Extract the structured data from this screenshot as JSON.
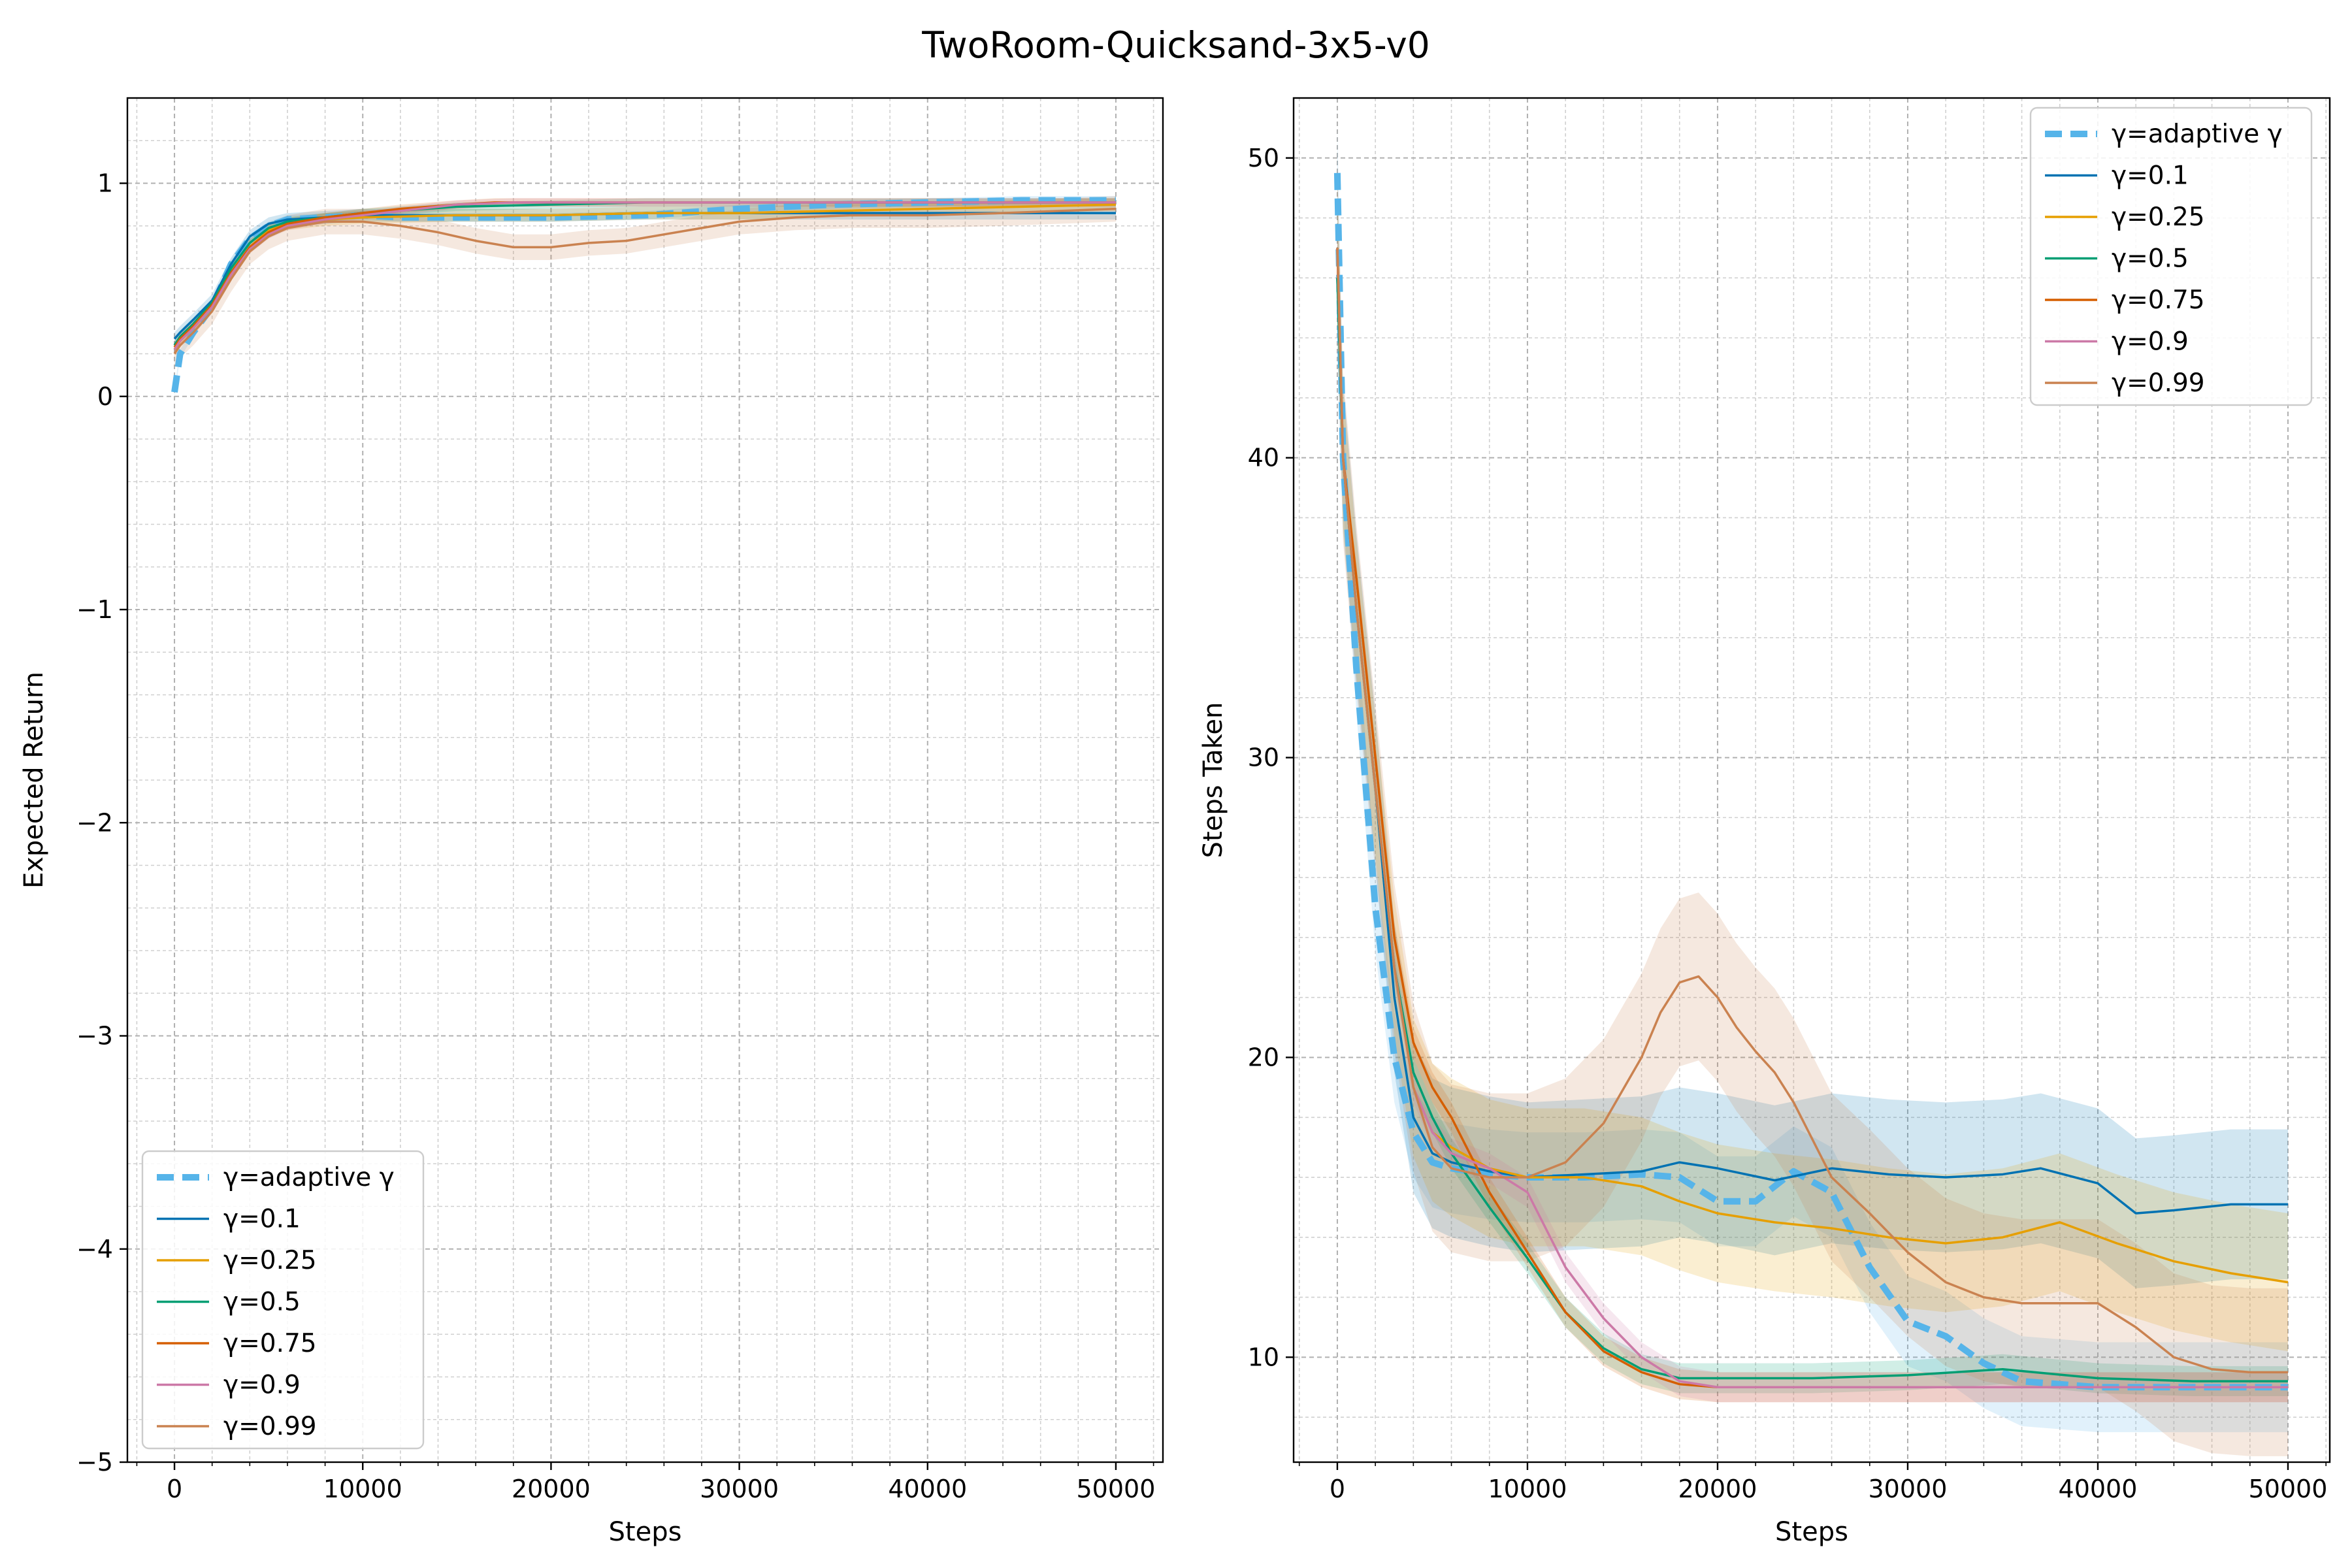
{
  "figure": {
    "title": "TwoRoom-Quicksand-3x5-v0"
  },
  "colors": {
    "adaptive": "#56B4E9",
    "g01": "#0072B2",
    "g025": "#E69F00",
    "g05": "#009E73",
    "g075": "#D55E00",
    "g09": "#CC79A7",
    "g099": "#CA8250"
  },
  "chart_data": [
    {
      "type": "line",
      "xlabel": "Steps",
      "ylabel": "Expected Return",
      "xlim": [
        -2500,
        52500
      ],
      "ylim": [
        -5,
        1.4
      ],
      "xticks": [
        0,
        10000,
        20000,
        30000,
        40000,
        50000
      ],
      "yticks": [
        -5,
        -4,
        -3,
        -2,
        -1,
        0,
        1
      ],
      "ytick_labels": [
        "−5",
        "−4",
        "−3",
        "−2",
        "−1",
        "0",
        "1"
      ],
      "grid": true,
      "legend_position": "lower-left",
      "series": [
        {
          "name": "γ=adaptive γ",
          "color_key": "adaptive",
          "dashed": true,
          "x": [
            0,
            300,
            1000,
            2000,
            3000,
            4000,
            5000,
            6000,
            8000,
            10000,
            12000,
            15000,
            20000,
            25000,
            30000,
            35000,
            40000,
            45000,
            50000
          ],
          "y": [
            0.02,
            0.2,
            0.3,
            0.42,
            0.62,
            0.74,
            0.8,
            0.83,
            0.84,
            0.85,
            0.84,
            0.84,
            0.84,
            0.85,
            0.88,
            0.9,
            0.91,
            0.92,
            0.92
          ],
          "band": 0.02
        },
        {
          "name": "γ=0.1",
          "color_key": "g01",
          "x": [
            0,
            300,
            1000,
            2000,
            3000,
            4000,
            5000,
            6000,
            8000,
            10000,
            15000,
            20000,
            25000,
            30000,
            35000,
            40000,
            45000,
            50000
          ],
          "y": [
            0.27,
            0.3,
            0.36,
            0.45,
            0.62,
            0.75,
            0.81,
            0.83,
            0.84,
            0.85,
            0.85,
            0.85,
            0.86,
            0.86,
            0.86,
            0.86,
            0.86,
            0.86
          ],
          "band": 0.03
        },
        {
          "name": "γ=0.25",
          "color_key": "g025",
          "x": [
            0,
            300,
            1000,
            2000,
            3000,
            4000,
            5000,
            6000,
            8000,
            10000,
            15000,
            20000,
            25000,
            30000,
            35000,
            40000,
            45000,
            50000
          ],
          "y": [
            0.22,
            0.26,
            0.32,
            0.42,
            0.58,
            0.7,
            0.78,
            0.81,
            0.83,
            0.84,
            0.85,
            0.85,
            0.86,
            0.86,
            0.87,
            0.88,
            0.89,
            0.9
          ],
          "band": 0.03
        },
        {
          "name": "γ=0.5",
          "color_key": "g05",
          "x": [
            0,
            300,
            1000,
            2000,
            3000,
            4000,
            5000,
            6000,
            8000,
            10000,
            15000,
            20000,
            25000,
            30000,
            35000,
            40000,
            45000,
            50000
          ],
          "y": [
            0.24,
            0.28,
            0.34,
            0.44,
            0.6,
            0.72,
            0.79,
            0.82,
            0.84,
            0.86,
            0.89,
            0.9,
            0.91,
            0.91,
            0.91,
            0.91,
            0.91,
            0.91
          ],
          "band": 0.02
        },
        {
          "name": "γ=0.75",
          "color_key": "g075",
          "x": [
            0,
            300,
            1000,
            2000,
            3000,
            4000,
            5000,
            6000,
            8000,
            10000,
            12000,
            15000,
            17000,
            20000,
            25000,
            30000,
            35000,
            40000,
            45000,
            50000
          ],
          "y": [
            0.23,
            0.27,
            0.33,
            0.43,
            0.58,
            0.7,
            0.77,
            0.81,
            0.84,
            0.86,
            0.88,
            0.9,
            0.91,
            0.91,
            0.91,
            0.91,
            0.91,
            0.91,
            0.91,
            0.91
          ],
          "band": 0.02
        },
        {
          "name": "γ=0.9",
          "color_key": "g09",
          "x": [
            0,
            300,
            1000,
            2000,
            3000,
            4000,
            5000,
            6000,
            8000,
            10000,
            12000,
            15000,
            18000,
            20000,
            25000,
            30000,
            35000,
            40000,
            45000,
            50000
          ],
          "y": [
            0.22,
            0.26,
            0.32,
            0.42,
            0.57,
            0.69,
            0.76,
            0.8,
            0.83,
            0.85,
            0.87,
            0.9,
            0.91,
            0.91,
            0.91,
            0.91,
            0.91,
            0.91,
            0.91,
            0.91
          ],
          "band": 0.02
        },
        {
          "name": "γ=0.99",
          "color_key": "g099",
          "x": [
            0,
            300,
            1000,
            2000,
            3000,
            4000,
            5000,
            6000,
            8000,
            10000,
            12000,
            14000,
            16000,
            18000,
            20000,
            22000,
            24000,
            26000,
            28000,
            30000,
            33000,
            36000,
            40000,
            44000,
            47000,
            50000
          ],
          "y": [
            0.2,
            0.24,
            0.3,
            0.4,
            0.55,
            0.68,
            0.75,
            0.79,
            0.82,
            0.82,
            0.8,
            0.77,
            0.73,
            0.7,
            0.7,
            0.72,
            0.73,
            0.76,
            0.79,
            0.82,
            0.84,
            0.85,
            0.85,
            0.86,
            0.87,
            0.88
          ],
          "band": 0.06
        }
      ]
    },
    {
      "type": "line",
      "xlabel": "Steps",
      "ylabel": "Steps Taken",
      "xlim": [
        -2300,
        52200
      ],
      "ylim": [
        6.5,
        52
      ],
      "xticks": [
        0,
        10000,
        20000,
        30000,
        40000,
        50000
      ],
      "yticks": [
        10,
        20,
        30,
        40,
        50
      ],
      "ytick_labels": [
        "10",
        "20",
        "30",
        "40",
        "50"
      ],
      "grid": true,
      "legend_position": "top-right",
      "series": [
        {
          "name": "γ=adaptive γ",
          "color_key": "adaptive",
          "dashed": true,
          "x": [
            0,
            300,
            1000,
            2000,
            3000,
            4000,
            5000,
            6000,
            8000,
            10000,
            13000,
            16000,
            18000,
            20000,
            22000,
            24000,
            26000,
            28000,
            30000,
            32000,
            34000,
            36000,
            40000,
            45000,
            50000
          ],
          "y": [
            49.5,
            40,
            33,
            25,
            20,
            17.5,
            16.5,
            16.3,
            16.1,
            16,
            16,
            16.1,
            16,
            15.2,
            15.2,
            16.2,
            15.5,
            13,
            11.2,
            10.7,
            9.8,
            9.2,
            9,
            9,
            9
          ],
          "band": 1.5
        },
        {
          "name": "γ=0.1",
          "color_key": "g01",
          "x": [
            0,
            300,
            1000,
            2000,
            3000,
            4000,
            5000,
            6000,
            8000,
            10000,
            13000,
            16000,
            18000,
            20000,
            23000,
            26000,
            29000,
            32000,
            35000,
            37000,
            40000,
            42000,
            44000,
            47000,
            50000
          ],
          "y": [
            46,
            40,
            35,
            29,
            22,
            18,
            16.8,
            16.5,
            16.2,
            16,
            16.1,
            16.2,
            16.5,
            16.3,
            15.9,
            16.3,
            16.1,
            16,
            16.1,
            16.3,
            15.8,
            14.8,
            14.9,
            15.1,
            15.1
          ],
          "band": 2.5
        },
        {
          "name": "γ=0.25",
          "color_key": "g025",
          "x": [
            0,
            300,
            1000,
            2000,
            3000,
            4000,
            5000,
            6000,
            8000,
            10000,
            13000,
            16000,
            18000,
            20000,
            23000,
            26000,
            29000,
            32000,
            35000,
            38000,
            41000,
            44000,
            47000,
            50000
          ],
          "y": [
            47,
            40,
            35,
            29,
            23,
            19,
            17.5,
            17,
            16.3,
            16,
            16,
            15.7,
            15.2,
            14.8,
            14.5,
            14.3,
            14,
            13.8,
            14,
            14.5,
            13.8,
            13.2,
            12.8,
            12.5
          ],
          "band": 2.3
        },
        {
          "name": "γ=0.5",
          "color_key": "g05",
          "x": [
            0,
            300,
            1000,
            2000,
            3000,
            4000,
            5000,
            6000,
            8000,
            10000,
            12000,
            14000,
            16000,
            18000,
            20000,
            25000,
            30000,
            35000,
            40000,
            45000,
            50000
          ],
          "y": [
            46,
            40,
            35,
            29,
            23,
            19.5,
            18,
            16.8,
            15,
            13.3,
            11.5,
            10.3,
            9.6,
            9.3,
            9.3,
            9.3,
            9.4,
            9.6,
            9.3,
            9.2,
            9.2
          ],
          "band": 0.5
        },
        {
          "name": "γ=0.75",
          "color_key": "g075",
          "x": [
            0,
            300,
            1000,
            2000,
            3000,
            4000,
            5000,
            6000,
            8000,
            10000,
            12000,
            14000,
            16000,
            18000,
            20000,
            25000,
            30000,
            35000,
            40000,
            45000,
            50000
          ],
          "y": [
            47,
            40,
            36,
            30,
            24,
            20.5,
            19,
            18,
            15.5,
            13.5,
            11.5,
            10.2,
            9.5,
            9.1,
            9,
            9,
            9,
            9,
            9,
            9,
            9
          ],
          "band": 0.5
        },
        {
          "name": "γ=0.9",
          "color_key": "g09",
          "x": [
            0,
            300,
            1000,
            2000,
            3000,
            4000,
            5000,
            6000,
            8000,
            10000,
            12000,
            14000,
            16000,
            18000,
            20000,
            25000,
            30000,
            35000,
            40000,
            45000,
            50000
          ],
          "y": [
            47,
            40,
            35,
            29,
            23,
            19,
            17.5,
            16.8,
            16.3,
            15.5,
            13,
            11.3,
            10,
            9.2,
            9,
            9,
            9,
            9,
            9,
            9,
            9
          ],
          "band": 0.5
        },
        {
          "name": "γ=0.99",
          "color_key": "g099",
          "x": [
            0,
            300,
            1000,
            2000,
            3000,
            4000,
            5000,
            6000,
            8000,
            10000,
            12000,
            14000,
            16000,
            17000,
            18000,
            19000,
            20000,
            21000,
            22000,
            23000,
            24000,
            26000,
            28000,
            30000,
            32000,
            34000,
            36000,
            38000,
            40000,
            42000,
            44000,
            46000,
            48000,
            50000
          ],
          "y": [
            47,
            40,
            35,
            29,
            23,
            19,
            17,
            16.3,
            16,
            16,
            16.5,
            17.8,
            20,
            21.5,
            22.5,
            22.7,
            22,
            21,
            20.2,
            19.5,
            18.5,
            16,
            14.8,
            13.5,
            12.5,
            12,
            11.8,
            11.8,
            11.8,
            11,
            10,
            9.6,
            9.5,
            9.5
          ],
          "band": 2.8
        }
      ]
    }
  ]
}
